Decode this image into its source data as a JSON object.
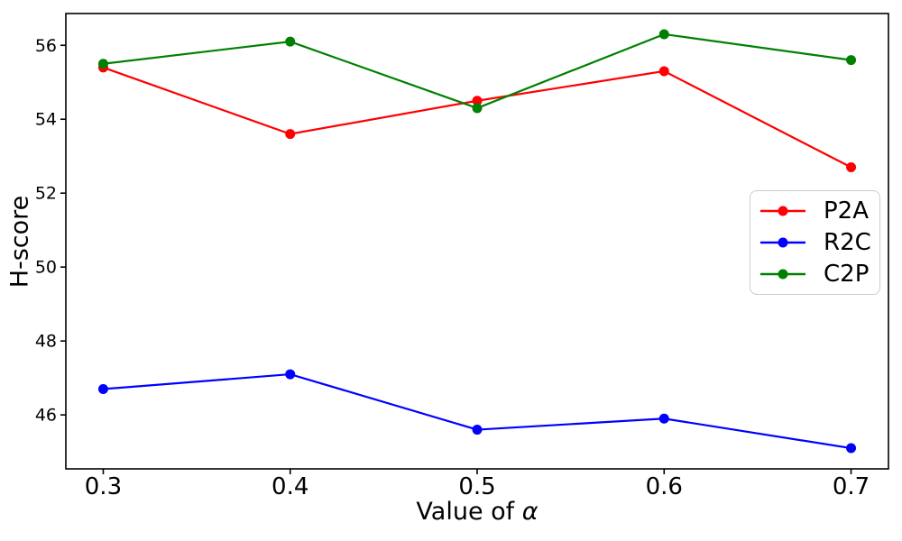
{
  "chart_data": {
    "type": "line",
    "title": "",
    "xlabel_prefix": "Value of ",
    "xlabel_symbol": "α",
    "xlabel": "Value of α",
    "ylabel": "H-score",
    "x": [
      0.3,
      0.4,
      0.5,
      0.6,
      0.7
    ],
    "x_tick_labels": [
      "0.3",
      "0.4",
      "0.5",
      "0.6",
      "0.7"
    ],
    "y_ticks": [
      46,
      48,
      50,
      52,
      54,
      56
    ],
    "xlim": [
      0.28,
      0.72
    ],
    "ylim": [
      44.54,
      56.86
    ],
    "grid": false,
    "legend": {
      "position": "center right",
      "border_color": "#cccccc",
      "background": "#ffffff"
    },
    "series": [
      {
        "name": "P2A",
        "color": "#ff0000",
        "values": [
          55.4,
          53.6,
          54.5,
          55.3,
          52.7
        ]
      },
      {
        "name": "R2C",
        "color": "#0000ff",
        "values": [
          46.7,
          47.1,
          45.6,
          45.9,
          45.1
        ]
      },
      {
        "name": "C2P",
        "color": "#008000",
        "values": [
          55.5,
          56.1,
          54.3,
          56.3,
          55.6
        ]
      }
    ]
  }
}
